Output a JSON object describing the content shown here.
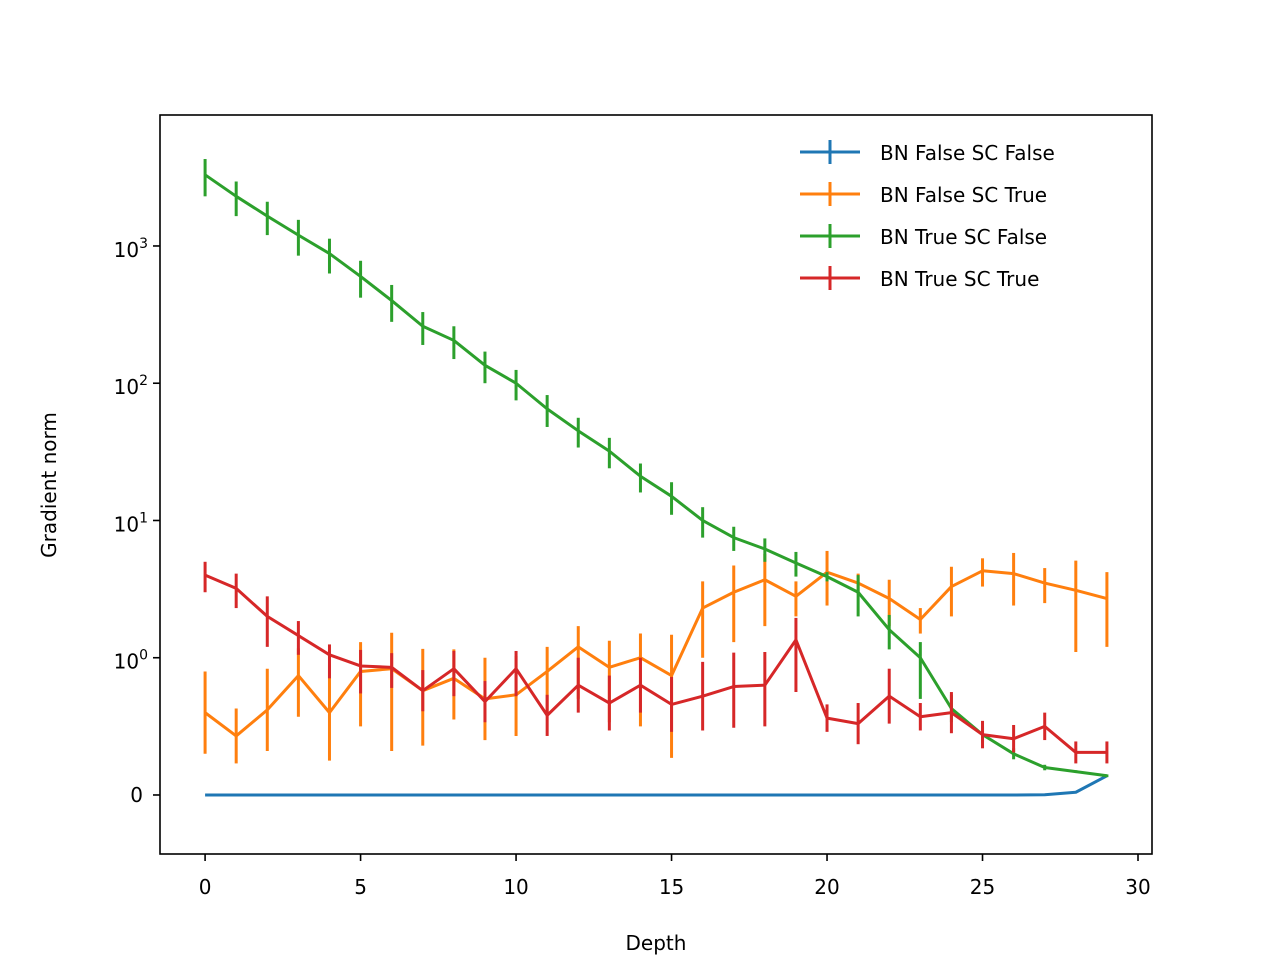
{
  "chart_data": {
    "type": "line",
    "xlabel": "Depth",
    "ylabel": "Gradient norm",
    "yscale": "symlog",
    "xlim": [
      -1.45,
      30.45
    ],
    "ylim": [
      -0.43,
      9000
    ],
    "x_ticks": [
      0,
      5,
      10,
      15,
      20,
      25,
      30
    ],
    "x_tick_labels": [
      "0",
      "5",
      "10",
      "15",
      "20",
      "25",
      "30"
    ],
    "y_ticks": [
      0,
      1,
      10,
      100,
      1000
    ],
    "y_tick_labels": [
      {
        "base": "0",
        "exp": ""
      },
      {
        "base": "10",
        "exp": "0"
      },
      {
        "base": "10",
        "exp": "1"
      },
      {
        "base": "10",
        "exp": "2"
      },
      {
        "base": "10",
        "exp": "3"
      }
    ],
    "legend_position": "upper right",
    "x": [
      0,
      1,
      2,
      3,
      4,
      5,
      6,
      7,
      8,
      9,
      10,
      11,
      12,
      13,
      14,
      15,
      16,
      17,
      18,
      19,
      20,
      21,
      22,
      23,
      24,
      25,
      26,
      27,
      28,
      29
    ],
    "series": [
      {
        "name": "BN False SC False",
        "color": "#1f77b4",
        "values": [
          0,
          0,
          0,
          0,
          0,
          0,
          0,
          0,
          0,
          0,
          0,
          0,
          0,
          0,
          0,
          0,
          0,
          0,
          0,
          0,
          0,
          0,
          0,
          0,
          0,
          0,
          0,
          0.002,
          0.02,
          0.14
        ],
        "errors": [
          0,
          0,
          0,
          0,
          0,
          0,
          0,
          0,
          0,
          0,
          0,
          0,
          0,
          0,
          0,
          0,
          0,
          0,
          0,
          0,
          0,
          0,
          0,
          0,
          0,
          0,
          0,
          0,
          0,
          0
        ]
      },
      {
        "name": "BN False SC True",
        "color": "#ff7f0e",
        "values": [
          0.6,
          0.43,
          0.62,
          0.87,
          0.6,
          0.9,
          0.92,
          0.76,
          0.85,
          0.7,
          0.73,
          0.9,
          1.2,
          0.93,
          1.0,
          0.87,
          2.3,
          3.0,
          3.7,
          2.8,
          4.2,
          3.5,
          2.7,
          1.9,
          3.3,
          4.3,
          4.1,
          3.5,
          3.1,
          2.7
        ],
        "errors": [
          0.3,
          0.2,
          0.3,
          0.3,
          0.35,
          0.4,
          0.6,
          0.4,
          0.3,
          0.3,
          0.3,
          0.3,
          0.5,
          0.4,
          0.5,
          0.6,
          1.3,
          1.7,
          2.0,
          0.8,
          1.8,
          0.6,
          1.0,
          0.4,
          1.3,
          1.0,
          1.7,
          1.0,
          2.0,
          1.5
        ]
      },
      {
        "name": "BN True SC False",
        "color": "#2ca02c",
        "values": [
          3300,
          2300,
          1650,
          1200,
          880,
          600,
          400,
          260,
          205,
          135,
          100,
          65,
          45,
          32,
          21,
          15,
          10,
          7.5,
          6.2,
          4.9,
          3.9,
          3.0,
          1.6,
          1.0,
          0.63,
          0.44,
          0.3,
          0.2,
          0.17,
          0.14
        ],
        "errors": [
          1000,
          650,
          450,
          350,
          250,
          180,
          120,
          70,
          55,
          35,
          25,
          17,
          11,
          8,
          5,
          4,
          2.5,
          1.5,
          1.2,
          1.0,
          0.3,
          1.0,
          0.45,
          0.3,
          0.1,
          0.06,
          0.04,
          0.02,
          0.01,
          0.01
        ]
      },
      {
        "name": "BN True SC True",
        "color": "#d62728",
        "values": [
          4.0,
          3.2,
          2.0,
          1.45,
          1.05,
          0.94,
          0.93,
          0.76,
          0.92,
          0.68,
          0.92,
          0.58,
          0.8,
          0.67,
          0.8,
          0.66,
          0.72,
          0.79,
          0.8,
          1.35,
          0.56,
          0.52,
          0.72,
          0.57,
          0.6,
          0.44,
          0.41,
          0.5,
          0.31,
          0.31
        ],
        "errors": [
          1.0,
          0.9,
          0.8,
          0.4,
          0.2,
          0.2,
          0.15,
          0.15,
          0.2,
          0.15,
          0.2,
          0.15,
          0.2,
          0.2,
          0.2,
          0.2,
          0.25,
          0.3,
          0.3,
          0.6,
          0.1,
          0.15,
          0.2,
          0.1,
          0.15,
          0.1,
          0.1,
          0.1,
          0.08,
          0.08
        ]
      }
    ]
  }
}
